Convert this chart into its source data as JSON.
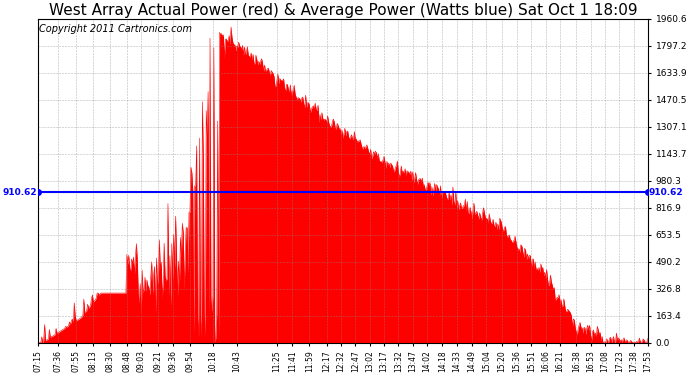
{
  "title": "West Array Actual Power (red) & Average Power (Watts blue) Sat Oct 1 18:09",
  "copyright": "Copyright 2011 Cartronics.com",
  "average_power": 910.62,
  "ymax": 1960.6,
  "ymin": 0.0,
  "yticks": [
    0.0,
    163.4,
    326.8,
    490.2,
    653.5,
    816.9,
    980.3,
    1143.7,
    1307.1,
    1470.5,
    1633.9,
    1797.2,
    1960.6
  ],
  "ytick_labels": [
    "0.0",
    "163.4",
    "326.8",
    "490.2",
    "653.5",
    "816.9",
    "980.3",
    "1143.7",
    "1307.1",
    "1470.5",
    "1633.9",
    "1797.2",
    "1960.6"
  ],
  "xtick_labels": [
    "07:15",
    "07:36",
    "07:55",
    "08:13",
    "08:30",
    "08:48",
    "09:03",
    "09:21",
    "09:36",
    "09:54",
    "10:18",
    "10:43",
    "11:25",
    "11:41",
    "11:59",
    "12:17",
    "12:32",
    "12:47",
    "13:02",
    "13:17",
    "13:32",
    "13:47",
    "14:02",
    "14:18",
    "14:33",
    "14:49",
    "15:04",
    "15:20",
    "15:36",
    "15:51",
    "16:06",
    "16:21",
    "16:38",
    "16:53",
    "17:08",
    "17:23",
    "17:38",
    "17:53"
  ],
  "bar_color": "#ff0000",
  "line_color": "#0000ff",
  "background_color": "#ffffff",
  "grid_color": "#888888",
  "title_fontsize": 11,
  "copyright_fontsize": 7
}
